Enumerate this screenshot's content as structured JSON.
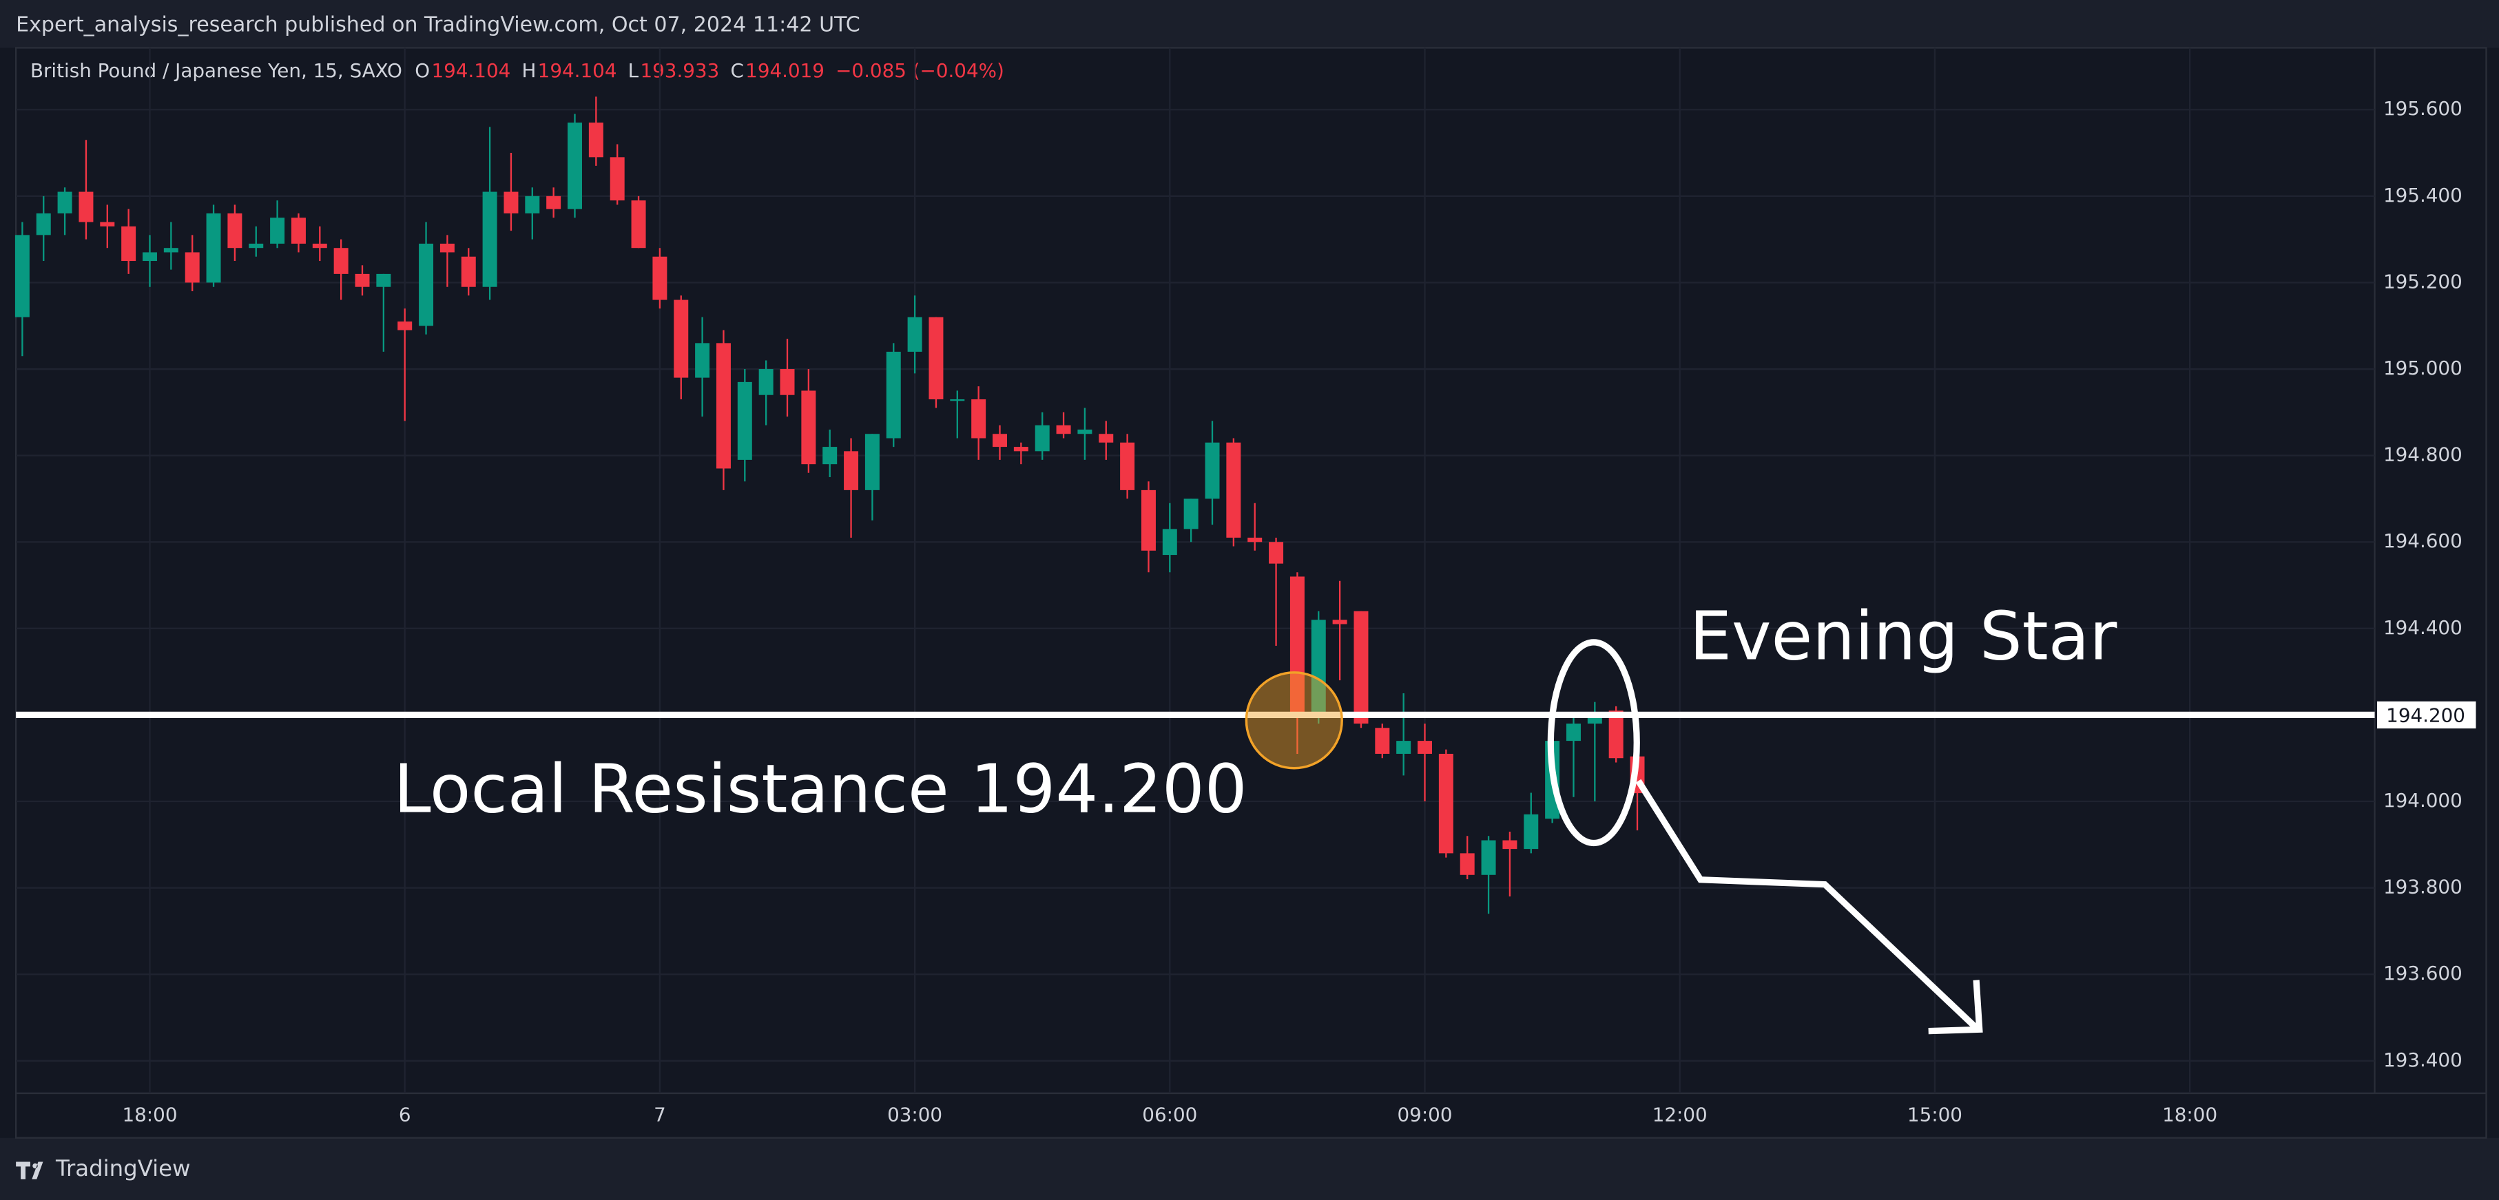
{
  "header": {
    "publisher": "Expert_analysis_research published on TradingView.com, Oct 07, 2024 11:42 UTC"
  },
  "footer": {
    "brand": "TradingView"
  },
  "chart_data": {
    "type": "candlestick",
    "title": "British Pound / Japanese Yen, 15, SAXO",
    "ohlc_legend": [
      {
        "key": "O",
        "value": "194.104"
      },
      {
        "key": "H",
        "value": "194.104"
      },
      {
        "key": "L",
        "value": "193.933"
      },
      {
        "key": "C",
        "value": "194.019"
      }
    ],
    "change": "−0.085 (−0.04%)",
    "up_color": "#089981",
    "down_color": "#f23645",
    "candles": [
      [
        195.12,
        195.34,
        195.03,
        195.31
      ],
      [
        195.31,
        195.4,
        195.25,
        195.36
      ],
      [
        195.36,
        195.42,
        195.31,
        195.41
      ],
      [
        195.41,
        195.53,
        195.3,
        195.34
      ],
      [
        195.34,
        195.38,
        195.28,
        195.33
      ],
      [
        195.33,
        195.37,
        195.22,
        195.25
      ],
      [
        195.25,
        195.31,
        195.19,
        195.27
      ],
      [
        195.27,
        195.34,
        195.23,
        195.28
      ],
      [
        195.27,
        195.31,
        195.18,
        195.2
      ],
      [
        195.2,
        195.38,
        195.19,
        195.36
      ],
      [
        195.36,
        195.38,
        195.25,
        195.28
      ],
      [
        195.28,
        195.33,
        195.26,
        195.29
      ],
      [
        195.29,
        195.39,
        195.28,
        195.35
      ],
      [
        195.35,
        195.36,
        195.27,
        195.29
      ],
      [
        195.29,
        195.33,
        195.25,
        195.28
      ],
      [
        195.28,
        195.3,
        195.16,
        195.22
      ],
      [
        195.22,
        195.24,
        195.17,
        195.19
      ],
      [
        195.19,
        195.22,
        195.04,
        195.22
      ],
      [
        195.11,
        195.14,
        194.88,
        195.09
      ],
      [
        195.1,
        195.34,
        195.08,
        195.29
      ],
      [
        195.29,
        195.31,
        195.19,
        195.27
      ],
      [
        195.26,
        195.28,
        195.17,
        195.19
      ],
      [
        195.19,
        195.56,
        195.16,
        195.41
      ],
      [
        195.41,
        195.5,
        195.32,
        195.36
      ],
      [
        195.36,
        195.42,
        195.3,
        195.4
      ],
      [
        195.4,
        195.42,
        195.35,
        195.37
      ],
      [
        195.37,
        195.59,
        195.35,
        195.57
      ],
      [
        195.57,
        195.63,
        195.47,
        195.49
      ],
      [
        195.49,
        195.52,
        195.38,
        195.39
      ],
      [
        195.39,
        195.4,
        195.28,
        195.28
      ],
      [
        195.26,
        195.28,
        195.14,
        195.16
      ],
      [
        195.16,
        195.17,
        194.93,
        194.98
      ],
      [
        194.98,
        195.12,
        194.89,
        195.06
      ],
      [
        195.06,
        195.09,
        194.72,
        194.77
      ],
      [
        194.79,
        195.0,
        194.74,
        194.97
      ],
      [
        194.94,
        195.02,
        194.87,
        195.0
      ],
      [
        195.0,
        195.07,
        194.89,
        194.94
      ],
      [
        194.95,
        195.0,
        194.76,
        194.78
      ],
      [
        194.78,
        194.86,
        194.75,
        194.82
      ],
      [
        194.81,
        194.84,
        194.61,
        194.72
      ],
      [
        194.72,
        194.85,
        194.65,
        194.85
      ],
      [
        194.84,
        195.06,
        194.82,
        195.04
      ],
      [
        195.04,
        195.17,
        194.99,
        195.12
      ],
      [
        195.12,
        195.12,
        194.91,
        194.93
      ],
      [
        194.93,
        194.95,
        194.84,
        194.93
      ],
      [
        194.93,
        194.96,
        194.79,
        194.84
      ],
      [
        194.85,
        194.87,
        194.79,
        194.82
      ],
      [
        194.82,
        194.83,
        194.78,
        194.81
      ],
      [
        194.81,
        194.9,
        194.79,
        194.87
      ],
      [
        194.87,
        194.9,
        194.84,
        194.85
      ],
      [
        194.85,
        194.91,
        194.79,
        194.86
      ],
      [
        194.85,
        194.88,
        194.79,
        194.83
      ],
      [
        194.83,
        194.85,
        194.7,
        194.72
      ],
      [
        194.72,
        194.74,
        194.53,
        194.58
      ],
      [
        194.57,
        194.69,
        194.53,
        194.63
      ],
      [
        194.63,
        194.7,
        194.6,
        194.7
      ],
      [
        194.7,
        194.88,
        194.64,
        194.83
      ],
      [
        194.83,
        194.84,
        194.59,
        194.61
      ],
      [
        194.61,
        194.69,
        194.58,
        194.6
      ],
      [
        194.6,
        194.61,
        194.36,
        194.55
      ],
      [
        194.52,
        194.53,
        194.11,
        194.2
      ],
      [
        194.2,
        194.44,
        194.18,
        194.42
      ],
      [
        194.42,
        194.51,
        194.28,
        194.41
      ],
      [
        194.44,
        194.44,
        194.17,
        194.18
      ],
      [
        194.17,
        194.18,
        194.1,
        194.11
      ],
      [
        194.11,
        194.25,
        194.06,
        194.14
      ],
      [
        194.14,
        194.18,
        194.0,
        194.11
      ],
      [
        194.11,
        194.12,
        193.87,
        193.88
      ],
      [
        193.88,
        193.92,
        193.82,
        193.83
      ],
      [
        193.83,
        193.92,
        193.74,
        193.91
      ],
      [
        193.91,
        193.93,
        193.78,
        193.89
      ],
      [
        193.89,
        194.02,
        193.88,
        193.97
      ],
      [
        193.96,
        194.14,
        193.95,
        194.14
      ],
      [
        194.14,
        194.2,
        194.01,
        194.18
      ],
      [
        194.18,
        194.23,
        194.0,
        194.2
      ],
      [
        194.21,
        194.22,
        194.09,
        194.1
      ],
      [
        194.104,
        194.104,
        193.933,
        194.019
      ]
    ],
    "xlim": [
      -0.3,
      110.7
    ],
    "xticks": [
      {
        "value": 6,
        "label": "18:00"
      },
      {
        "value": 18,
        "label": "6"
      },
      {
        "value": 30,
        "label": "7"
      },
      {
        "value": 42,
        "label": "03:00"
      },
      {
        "value": 54,
        "label": "06:00"
      },
      {
        "value": 66,
        "label": "09:00"
      },
      {
        "value": 78,
        "label": "12:00"
      },
      {
        "value": 90,
        "label": "15:00"
      },
      {
        "value": 102,
        "label": "18:00"
      }
    ],
    "ylim": [
      193.325,
      195.743
    ],
    "yticks": [
      {
        "value": 193.4,
        "label": "193.400"
      },
      {
        "value": 193.6,
        "label": "193.600"
      },
      {
        "value": 193.8,
        "label": "193.800"
      },
      {
        "value": 194.0,
        "label": "194.000"
      },
      {
        "value": 194.2,
        "label": "194.200"
      },
      {
        "value": 194.4,
        "label": "194.400"
      },
      {
        "value": 194.6,
        "label": "194.600"
      },
      {
        "value": 194.8,
        "label": "194.800"
      },
      {
        "value": 195.0,
        "label": "195.000"
      },
      {
        "value": 195.2,
        "label": "195.200"
      },
      {
        "value": 195.4,
        "label": "195.400"
      },
      {
        "value": 195.6,
        "label": "195.600"
      }
    ],
    "grid": true,
    "resistance": {
      "value": 194.2,
      "label": "194.200",
      "text": "Local Resistance 194.200"
    },
    "annotation": "Evening Star"
  }
}
